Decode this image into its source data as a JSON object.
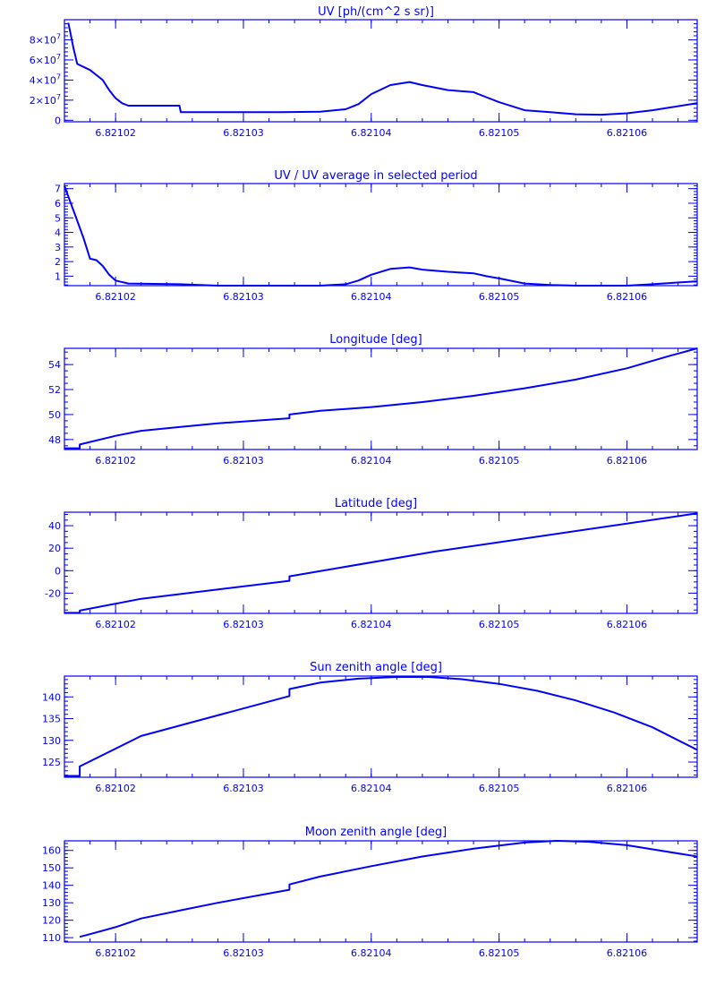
{
  "chart_data": [
    {
      "type": "line",
      "title": "UV [ph/(cm^2 s sr)]",
      "xlabel": "",
      "ylabel": "",
      "xlim": [
        6.821016,
        6.8210655
      ],
      "ylim": [
        -1500000.0,
        100000000.0
      ],
      "x_ticks": [
        6.82102,
        6.82103,
        6.82104,
        6.82105,
        6.82106
      ],
      "x_tick_labels": [
        "6.82102",
        "6.82103",
        "6.82104",
        "6.82105",
        "6.82106"
      ],
      "y_ticks": [
        0,
        20000000.0,
        40000000.0,
        60000000.0,
        80000000.0
      ],
      "y_tick_labels": [
        {
          "mant": "0",
          "exp": ""
        },
        {
          "mant": "2×10",
          "exp": "7"
        },
        {
          "mant": "4×10",
          "exp": "7"
        },
        {
          "mant": "6×10",
          "exp": "7"
        },
        {
          "mant": "8×10",
          "exp": "7"
        }
      ],
      "minor_y_ticks": 5,
      "series": [
        {
          "x": [
            6.8210163,
            6.8210165,
            6.8210167,
            6.821017,
            6.821018,
            6.821019,
            6.8210195,
            6.82102,
            6.8210205,
            6.821021,
            6.821025,
            6.8210251,
            6.821028,
            6.821031,
            6.821033,
            6.821036,
            6.821038,
            6.821039,
            6.82104,
            6.8210415,
            6.821043,
            6.821044,
            6.821046,
            6.821048,
            6.821049,
            6.82105,
            6.821052,
            6.821054,
            6.821056,
            6.821058,
            6.82106,
            6.821062,
            6.8210655
          ],
          "y": [
            97000000.0,
            85000000.0,
            72000000.0,
            56000000.0,
            50000000.0,
            40000000.0,
            30000000.0,
            22000000.0,
            17000000.0,
            14500000.0,
            14500000.0,
            8000000.0,
            8000000.0,
            8000000.0,
            8000000.0,
            8500000.0,
            11000000.0,
            16000000.0,
            26000000.0,
            35000000.0,
            38000000.0,
            35000000.0,
            30000000.0,
            28000000.0,
            23000000.0,
            18000000.0,
            10000000.0,
            8000000.0,
            6000000.0,
            5500000.0,
            7000000.0,
            10000000.0,
            17000000.0
          ]
        }
      ]
    },
    {
      "type": "line",
      "title": "UV / UV average in selected period",
      "xlabel": "",
      "ylabel": "",
      "xlim": [
        6.821016,
        6.8210655
      ],
      "ylim": [
        0.35,
        7.35
      ],
      "x_ticks": [
        6.82102,
        6.82103,
        6.82104,
        6.82105,
        6.82106
      ],
      "x_tick_labels": [
        "6.82102",
        "6.82103",
        "6.82104",
        "6.82105",
        "6.82106"
      ],
      "y_ticks": [
        1,
        2,
        3,
        4,
        5,
        6,
        7
      ],
      "y_tick_labels": [
        {
          "mant": "1",
          "exp": ""
        },
        {
          "mant": "2",
          "exp": ""
        },
        {
          "mant": "3",
          "exp": ""
        },
        {
          "mant": "4",
          "exp": ""
        },
        {
          "mant": "5",
          "exp": ""
        },
        {
          "mant": "6",
          "exp": ""
        },
        {
          "mant": "7",
          "exp": ""
        }
      ],
      "minor_y_ticks": 5,
      "series": [
        {
          "x": [
            6.821016,
            6.8210165,
            6.821017,
            6.8210175,
            6.821018,
            6.8210185,
            6.821019,
            6.8210195,
            6.82102,
            6.821021,
            6.821025,
            6.821028,
            6.821031,
            6.821033,
            6.821036,
            6.821038,
            6.821039,
            6.82104,
            6.8210415,
            6.821043,
            6.821044,
            6.821046,
            6.821048,
            6.821049,
            6.82105,
            6.821052,
            6.821054,
            6.821056,
            6.821058,
            6.82106,
            6.821062,
            6.8210655
          ],
          "y": [
            7.2,
            6.0,
            4.8,
            3.6,
            2.2,
            2.1,
            1.7,
            1.1,
            0.7,
            0.5,
            0.45,
            0.35,
            0.32,
            0.32,
            0.33,
            0.45,
            0.7,
            1.1,
            1.5,
            1.6,
            1.45,
            1.3,
            1.2,
            1.0,
            0.85,
            0.5,
            0.4,
            0.32,
            0.3,
            0.35,
            0.45,
            0.65
          ]
        }
      ]
    },
    {
      "type": "line",
      "title": "Longitude [deg]",
      "xlabel": "",
      "ylabel": "",
      "xlim": [
        6.821016,
        6.8210655
      ],
      "ylim": [
        47.2,
        55.3
      ],
      "x_ticks": [
        6.82102,
        6.82103,
        6.82104,
        6.82105,
        6.82106
      ],
      "x_tick_labels": [
        "6.82102",
        "6.82103",
        "6.82104",
        "6.82105",
        "6.82106"
      ],
      "y_ticks": [
        48,
        50,
        52,
        54
      ],
      "y_tick_labels": [
        {
          "mant": "48",
          "exp": ""
        },
        {
          "mant": "50",
          "exp": ""
        },
        {
          "mant": "52",
          "exp": ""
        },
        {
          "mant": "54",
          "exp": ""
        }
      ],
      "minor_y_ticks": 4,
      "series": [
        {
          "x": [
            6.821016,
            6.8210172,
            6.8210172,
            6.82102,
            6.821022,
            6.821025,
            6.821028,
            6.8210336,
            6.8210336,
            6.821036,
            6.82104,
            6.821044,
            6.821048,
            6.821052,
            6.821056,
            6.82106,
            6.821063,
            6.8210655
          ],
          "y": [
            47.3,
            47.3,
            47.6,
            48.3,
            48.7,
            49.0,
            49.3,
            49.7,
            50.0,
            50.3,
            50.6,
            51.0,
            51.5,
            52.1,
            52.8,
            53.7,
            54.6,
            55.3
          ]
        }
      ]
    },
    {
      "type": "line",
      "title": "Latitude [deg]",
      "xlabel": "",
      "ylabel": "",
      "xlim": [
        6.821016,
        6.8210655
      ],
      "ylim": [
        -38,
        52
      ],
      "x_ticks": [
        6.82102,
        6.82103,
        6.82104,
        6.82105,
        6.82106
      ],
      "x_tick_labels": [
        "6.82102",
        "6.82103",
        "6.82104",
        "6.82105",
        "6.82106"
      ],
      "y_ticks": [
        -20,
        0,
        20,
        40
      ],
      "y_tick_labels": [
        {
          "mant": "-20",
          "exp": ""
        },
        {
          "mant": "0",
          "exp": ""
        },
        {
          "mant": "20",
          "exp": ""
        },
        {
          "mant": "40",
          "exp": ""
        }
      ],
      "minor_y_ticks": 4,
      "series": [
        {
          "x": [
            6.821016,
            6.8210172,
            6.8210172,
            6.821022,
            6.8210336,
            6.8210336,
            6.821045,
            6.8210655
          ],
          "y": [
            -37.5,
            -37.5,
            -35.5,
            -25.0,
            -9.0,
            -5.0,
            17.0,
            51.0
          ]
        }
      ]
    },
    {
      "type": "line",
      "title": "Sun zenith angle [deg]",
      "xlabel": "",
      "ylabel": "",
      "xlim": [
        6.821016,
        6.8210655
      ],
      "ylim": [
        121.5,
        144.8
      ],
      "x_ticks": [
        6.82102,
        6.82103,
        6.82104,
        6.82105,
        6.82106
      ],
      "x_tick_labels": [
        "6.82102",
        "6.82103",
        "6.82104",
        "6.82105",
        "6.82106"
      ],
      "y_ticks": [
        125,
        130,
        135,
        140
      ],
      "y_tick_labels": [
        {
          "mant": "125",
          "exp": ""
        },
        {
          "mant": "130",
          "exp": ""
        },
        {
          "mant": "135",
          "exp": ""
        },
        {
          "mant": "140",
          "exp": ""
        }
      ],
      "minor_y_ticks": 5,
      "series": [
        {
          "x": [
            6.821016,
            6.8210172,
            6.8210172,
            6.821022,
            6.8210336,
            6.8210336,
            6.821036,
            6.821039,
            6.821042,
            6.8210445,
            6.821047,
            6.82105,
            6.821053,
            6.821056,
            6.821059,
            6.821062,
            6.8210655
          ],
          "y": [
            121.8,
            121.8,
            124.0,
            131.0,
            140.2,
            141.8,
            143.3,
            144.2,
            144.6,
            144.6,
            144.1,
            143.0,
            141.4,
            139.2,
            136.4,
            133.0,
            127.8
          ]
        }
      ]
    },
    {
      "type": "line",
      "title": "Moon zenith angle [deg]",
      "xlabel": "",
      "ylabel": "",
      "xlim": [
        6.821016,
        6.8210655
      ],
      "ylim": [
        107.5,
        165.5
      ],
      "x_ticks": [
        6.82102,
        6.82103,
        6.82104,
        6.82105,
        6.82106
      ],
      "x_tick_labels": [
        "6.82102",
        "6.82103",
        "6.82104",
        "6.82105",
        "6.82106"
      ],
      "y_ticks": [
        110,
        120,
        130,
        140,
        150,
        160
      ],
      "y_tick_labels": [
        {
          "mant": "110",
          "exp": ""
        },
        {
          "mant": "120",
          "exp": ""
        },
        {
          "mant": "130",
          "exp": ""
        },
        {
          "mant": "140",
          "exp": ""
        },
        {
          "mant": "150",
          "exp": ""
        },
        {
          "mant": "160",
          "exp": ""
        }
      ],
      "minor_y_ticks": 5,
      "series": [
        {
          "x": [
            6.8210172,
            6.821018,
            6.82102,
            6.821022,
            6.821025,
            6.821028,
            6.8210336,
            6.8210336,
            6.821036,
            6.82104,
            6.821044,
            6.821048,
            6.821052,
            6.8210545,
            6.821057,
            6.82106,
            6.8210655
          ],
          "y": [
            110.5,
            112.0,
            116.0,
            121.0,
            125.5,
            130.0,
            137.5,
            140.5,
            145.0,
            151.0,
            156.5,
            161.0,
            164.5,
            165.5,
            165.0,
            163.0,
            156.5
          ]
        }
      ]
    }
  ]
}
